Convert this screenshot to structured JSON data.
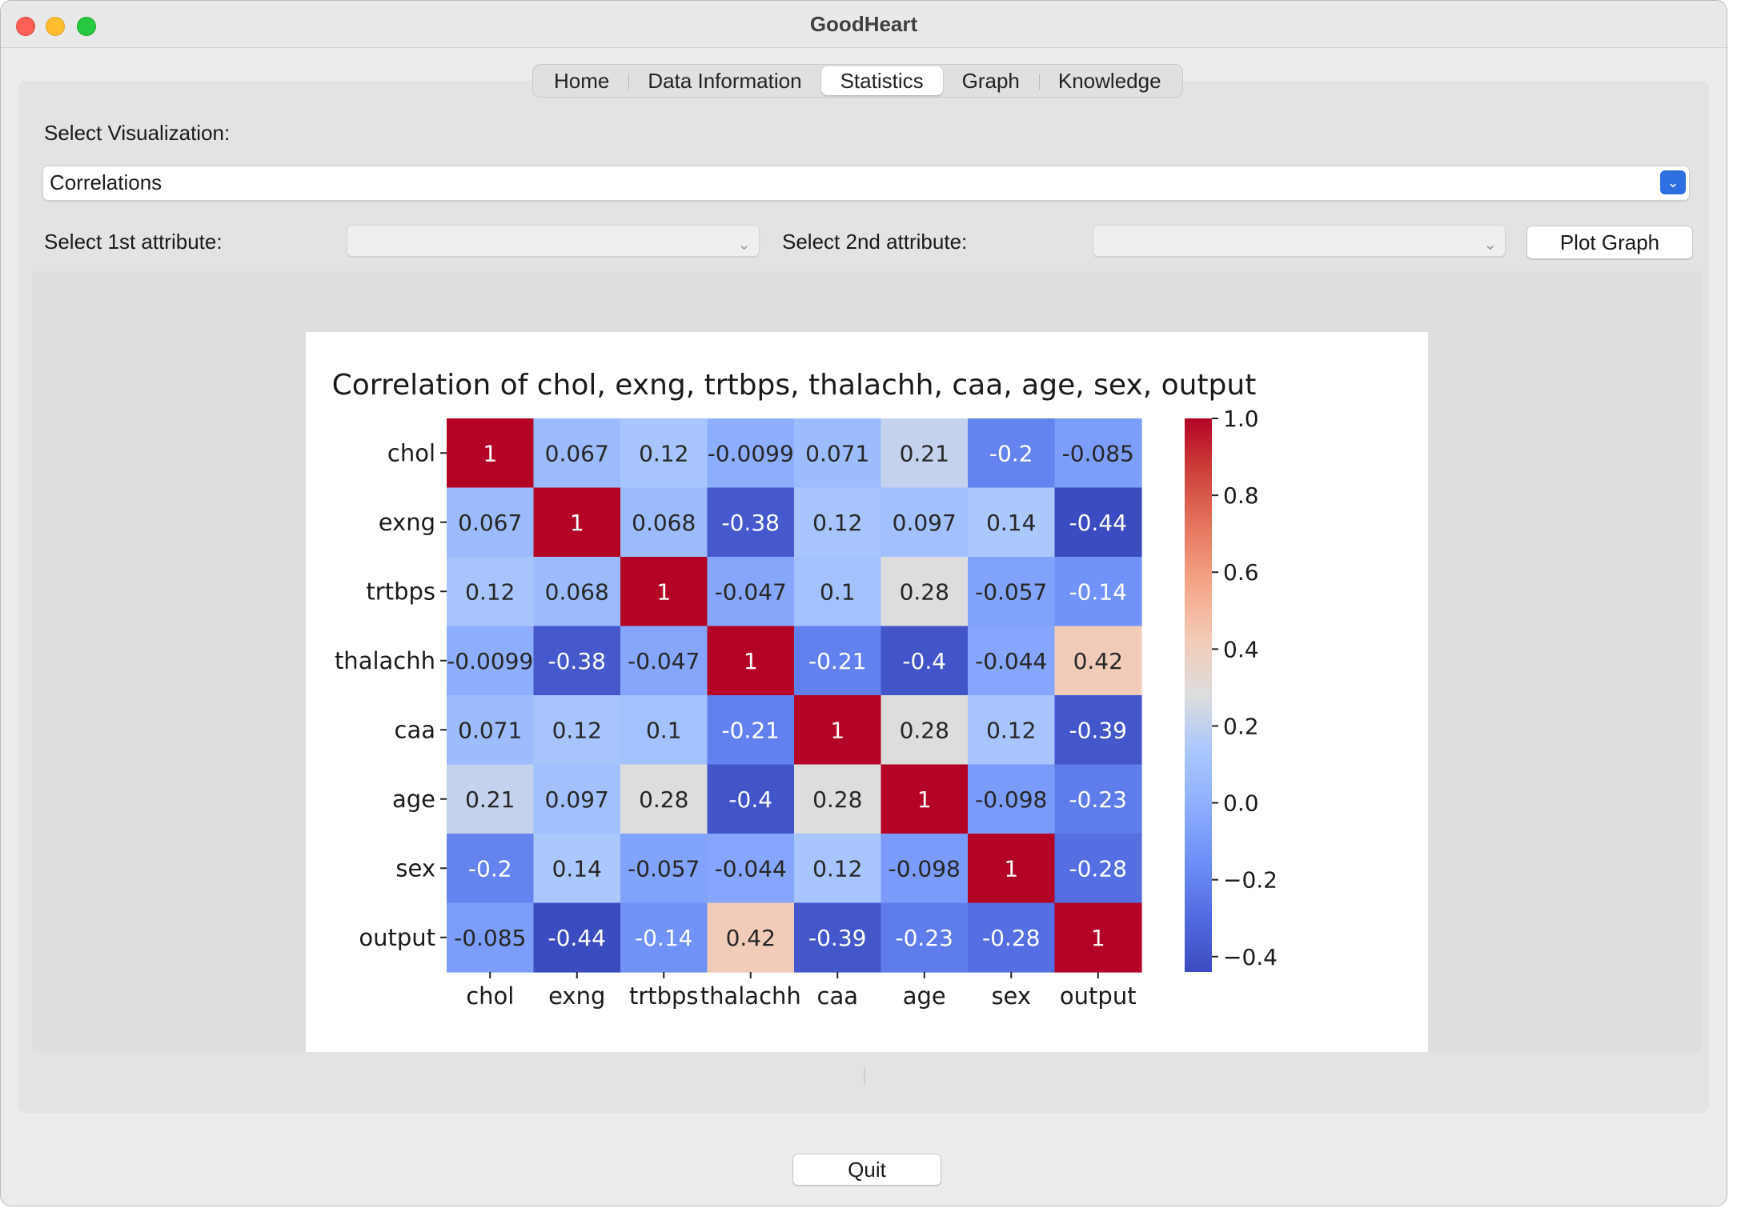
{
  "window": {
    "title": "GoodHeart"
  },
  "tabs": [
    {
      "label": "Home",
      "active": false
    },
    {
      "label": "Data Information",
      "active": false
    },
    {
      "label": "Statistics",
      "active": true
    },
    {
      "label": "Graph",
      "active": false
    },
    {
      "label": "Knowledge",
      "active": false
    }
  ],
  "controls": {
    "viz_label": "Select Visualization:",
    "viz_value": "Correlations",
    "attr1_label": "Select 1st attribute:",
    "attr1_value": "",
    "attr2_label": "Select 2nd attribute:",
    "attr2_value": "",
    "plot_button": "Plot Graph",
    "quit_button": "Quit"
  },
  "colors": {
    "accent": "#2d6fe0",
    "colormap_low": "#3b4cc0",
    "colormap_mid": "#dddddd",
    "colormap_high": "#b40426"
  },
  "chart_data": {
    "type": "heatmap",
    "title": "Correlation of chol, exng, trtbps, thalachh, caa, age, sex, output",
    "x_categories": [
      "chol",
      "exng",
      "trtbps",
      "thalachh",
      "caa",
      "age",
      "sex",
      "output"
    ],
    "y_categories": [
      "chol",
      "exng",
      "trtbps",
      "thalachh",
      "caa",
      "age",
      "sex",
      "output"
    ],
    "values": [
      [
        1,
        0.067,
        0.12,
        -0.0099,
        0.071,
        0.21,
        -0.2,
        -0.085
      ],
      [
        0.067,
        1,
        0.068,
        -0.38,
        0.12,
        0.097,
        0.14,
        -0.44
      ],
      [
        0.12,
        0.068,
        1,
        -0.047,
        0.1,
        0.28,
        -0.057,
        -0.14
      ],
      [
        -0.0099,
        -0.38,
        -0.047,
        1,
        -0.21,
        -0.4,
        -0.044,
        0.42
      ],
      [
        0.071,
        0.12,
        0.1,
        -0.21,
        1,
        0.28,
        0.12,
        -0.39
      ],
      [
        0.21,
        0.097,
        0.28,
        -0.4,
        0.28,
        1,
        -0.098,
        -0.23
      ],
      [
        -0.2,
        0.14,
        -0.057,
        -0.044,
        0.12,
        -0.098,
        1,
        -0.28
      ],
      [
        -0.085,
        -0.44,
        -0.14,
        0.42,
        -0.39,
        -0.23,
        -0.28,
        1
      ]
    ],
    "value_labels": [
      [
        "1",
        "0.067",
        "0.12",
        "-0.0099",
        "0.071",
        "0.21",
        "-0.2",
        "-0.085"
      ],
      [
        "0.067",
        "1",
        "0.068",
        "-0.38",
        "0.12",
        "0.097",
        "0.14",
        "-0.44"
      ],
      [
        "0.12",
        "0.068",
        "1",
        "-0.047",
        "0.1",
        "0.28",
        "-0.057",
        "-0.14"
      ],
      [
        "-0.0099",
        "-0.38",
        "-0.047",
        "1",
        "-0.21",
        "-0.4",
        "-0.044",
        "0.42"
      ],
      [
        "0.071",
        "0.12",
        "0.1",
        "-0.21",
        "1",
        "0.28",
        "0.12",
        "-0.39"
      ],
      [
        "0.21",
        "0.097",
        "0.28",
        "-0.4",
        "0.28",
        "1",
        "-0.098",
        "-0.23"
      ],
      [
        "-0.2",
        "0.14",
        "-0.057",
        "-0.044",
        "0.12",
        "-0.098",
        "1",
        "-0.28"
      ],
      [
        "-0.085",
        "-0.44",
        "-0.14",
        "0.42",
        "-0.39",
        "-0.23",
        "-0.28",
        "1"
      ]
    ],
    "colorbar": {
      "range": [
        -0.44,
        1.0
      ],
      "ticks": [
        1.0,
        0.8,
        0.6,
        0.4,
        0.2,
        0.0,
        -0.2,
        -0.4
      ],
      "tick_labels": [
        "1.0",
        "0.8",
        "0.6",
        "0.4",
        "0.2",
        "0.0",
        "−0.2",
        "−0.4"
      ]
    },
    "colormap": "coolwarm"
  }
}
